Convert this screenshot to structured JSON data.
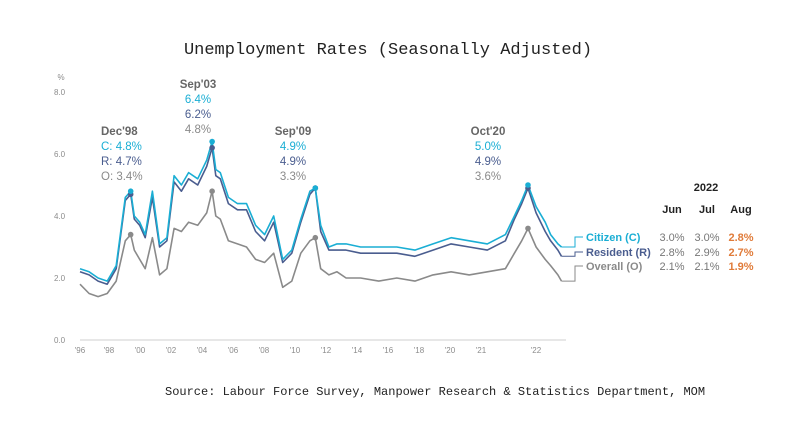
{
  "chart_data": {
    "type": "line",
    "title": "Unemployment Rates (Seasonally Adjusted)",
    "ylabel": "%",
    "ylim": [
      0,
      8
    ],
    "yticks": [
      "0.0",
      "2.0",
      "4.0",
      "6.0",
      "8.0"
    ],
    "xticks": [
      "'96",
      "'98",
      "'00",
      "'02",
      "'04",
      "'06",
      "'08",
      "'10",
      "'12",
      "'14",
      "'16",
      "'18",
      "'20",
      "'21",
      "'22"
    ],
    "source": "Source: Labour Force Survey, Manpower Research & Statistics Department, MOM",
    "colors": {
      "citizen": "#1aaed4",
      "resident": "#4a5d8f",
      "overall": "#8a8a8a",
      "highlight": "#e07b39"
    },
    "series": [
      {
        "name": "Citizen (C)",
        "x": [
          1996.0,
          1996.5,
          1997.0,
          1997.5,
          1998.0,
          1998.5,
          1998.8,
          1999.0,
          1999.3,
          1999.6,
          2000.0,
          2000.4,
          2000.8,
          2001.2,
          2001.6,
          2002.0,
          2002.5,
          2003.0,
          2003.3,
          2003.5,
          2003.75,
          2004.2,
          2004.7,
          2005.2,
          2005.7,
          2006.2,
          2006.7,
          2007.2,
          2007.7,
          2008.2,
          2008.7,
          2009.0,
          2009.3,
          2009.75,
          2010.2,
          2010.7,
          2011.5,
          2012.5,
          2013.5,
          2014.5,
          2015.5,
          2016.5,
          2017.5,
          2018.5,
          2019.5,
          2020.0,
          2020.4,
          2020.75,
          2021.2,
          2021.7,
          2022.0,
          2022.4,
          2022.6
        ],
        "values": [
          2.3,
          2.2,
          2.0,
          1.9,
          2.4,
          4.6,
          4.8,
          4.0,
          3.8,
          3.4,
          4.8,
          3.1,
          3.3,
          5.3,
          5.0,
          5.4,
          5.2,
          5.8,
          6.4,
          5.5,
          5.4,
          4.6,
          4.4,
          4.4,
          3.7,
          3.4,
          4.0,
          2.6,
          2.9,
          3.9,
          4.8,
          4.9,
          3.7,
          3.0,
          3.1,
          3.1,
          3.0,
          3.0,
          3.0,
          2.9,
          3.1,
          3.3,
          3.2,
          3.1,
          3.4,
          4.0,
          4.5,
          5.0,
          4.3,
          3.8,
          3.4,
          3.1,
          3.0
        ]
      },
      {
        "name": "Resident (R)",
        "x": [
          1996.0,
          1996.5,
          1997.0,
          1997.5,
          1998.0,
          1998.5,
          1998.8,
          1999.0,
          1999.3,
          1999.6,
          2000.0,
          2000.4,
          2000.8,
          2001.2,
          2001.6,
          2002.0,
          2002.5,
          2003.0,
          2003.3,
          2003.5,
          2003.75,
          2004.2,
          2004.7,
          2005.2,
          2005.7,
          2006.2,
          2006.7,
          2007.2,
          2007.7,
          2008.2,
          2008.7,
          2009.0,
          2009.3,
          2009.75,
          2010.2,
          2010.7,
          2011.5,
          2012.5,
          2013.5,
          2014.5,
          2015.5,
          2016.5,
          2017.5,
          2018.5,
          2019.5,
          2020.0,
          2020.4,
          2020.75,
          2021.2,
          2021.7,
          2022.0,
          2022.4,
          2022.6
        ],
        "values": [
          2.2,
          2.1,
          1.9,
          1.8,
          2.3,
          4.5,
          4.7,
          3.9,
          3.7,
          3.3,
          4.6,
          3.0,
          3.2,
          5.1,
          4.8,
          5.2,
          5.0,
          5.6,
          6.2,
          5.3,
          5.2,
          4.4,
          4.2,
          4.2,
          3.5,
          3.2,
          3.8,
          2.5,
          2.8,
          3.8,
          4.7,
          4.9,
          3.5,
          2.9,
          2.9,
          2.9,
          2.8,
          2.8,
          2.8,
          2.7,
          2.9,
          3.1,
          3.0,
          2.9,
          3.2,
          3.9,
          4.4,
          4.9,
          4.1,
          3.5,
          3.2,
          2.9,
          2.7
        ]
      },
      {
        "name": "Overall (O)",
        "x": [
          1996.0,
          1996.5,
          1997.0,
          1997.5,
          1998.0,
          1998.5,
          1998.8,
          1999.0,
          1999.3,
          1999.6,
          2000.0,
          2000.4,
          2000.8,
          2001.2,
          2001.6,
          2002.0,
          2002.5,
          2003.0,
          2003.3,
          2003.5,
          2003.75,
          2004.2,
          2004.7,
          2005.2,
          2005.7,
          2006.2,
          2006.7,
          2007.2,
          2007.7,
          2008.2,
          2008.7,
          2009.0,
          2009.3,
          2009.75,
          2010.2,
          2010.7,
          2011.5,
          2012.5,
          2013.5,
          2014.5,
          2015.5,
          2016.5,
          2017.5,
          2018.5,
          2019.5,
          2020.0,
          2020.4,
          2020.75,
          2021.2,
          2021.7,
          2022.0,
          2022.4,
          2022.6
        ],
        "values": [
          1.8,
          1.5,
          1.4,
          1.5,
          1.9,
          3.2,
          3.4,
          2.9,
          2.6,
          2.3,
          3.3,
          2.1,
          2.3,
          3.6,
          3.5,
          3.8,
          3.7,
          4.1,
          4.8,
          4.0,
          3.9,
          3.2,
          3.1,
          3.0,
          2.6,
          2.5,
          2.8,
          1.7,
          1.9,
          2.8,
          3.2,
          3.3,
          2.3,
          2.1,
          2.2,
          2.0,
          2.0,
          1.9,
          2.0,
          1.9,
          2.1,
          2.2,
          2.1,
          2.2,
          2.3,
          2.8,
          3.2,
          3.6,
          3.0,
          2.6,
          2.4,
          2.1,
          1.9
        ]
      }
    ],
    "annotations": [
      {
        "date": "Dec'98",
        "x": 1998.8,
        "c": "C: 4.8%",
        "r": "R: 4.7%",
        "o": "O: 3.4%"
      },
      {
        "date": "Sep'03",
        "x": 2003.3,
        "c": "6.4%",
        "r": "6.2%",
        "o": "4.8%"
      },
      {
        "date": "Sep'09",
        "x": 2009.0,
        "c": "4.9%",
        "r": "4.9%",
        "o": "3.3%"
      },
      {
        "date": "Oct'20",
        "x": 2020.75,
        "c": "5.0%",
        "r": "4.9%",
        "o": "3.6%"
      }
    ],
    "table": {
      "year": "2022",
      "months": [
        "Jun",
        "Jul",
        "Aug"
      ],
      "rows": [
        {
          "label": "Citizen (C)",
          "values": [
            "3.0%",
            "3.0%",
            "2.8%"
          ]
        },
        {
          "label": "Resident (R)",
          "values": [
            "2.8%",
            "2.9%",
            "2.7%"
          ]
        },
        {
          "label": "Overall (O)",
          "values": [
            "2.1%",
            "2.1%",
            "1.9%"
          ]
        }
      ]
    }
  }
}
